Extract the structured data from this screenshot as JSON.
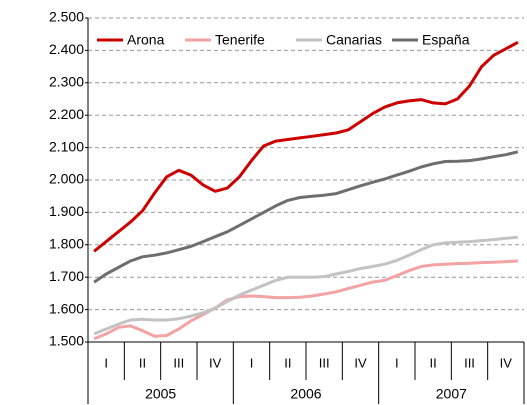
{
  "chart_data": {
    "type": "line",
    "quarters": [
      "I",
      "II",
      "III",
      "IV",
      "I",
      "II",
      "III",
      "IV",
      "I",
      "II",
      "III",
      "IV"
    ],
    "years": [
      "2005",
      "2006",
      "2007"
    ],
    "series": [
      {
        "name": "Arona",
        "color": "#cc0000",
        "values": [
          1780,
          1810,
          1840,
          1870,
          1905,
          1960,
          2010,
          2030,
          2015,
          1985,
          1965,
          1975,
          2010,
          2060,
          2105,
          2120,
          2125,
          2130,
          2135,
          2140,
          2145,
          2155,
          2180,
          2205,
          2225,
          2238,
          2244,
          2248,
          2238,
          2235,
          2250,
          2290,
          2350,
          2385,
          2405,
          2425
        ]
      },
      {
        "name": "Tenerife",
        "color": "#f4a3a3",
        "values": [
          1510,
          1525,
          1545,
          1550,
          1535,
          1518,
          1520,
          1540,
          1565,
          1585,
          1605,
          1630,
          1640,
          1642,
          1640,
          1637,
          1637,
          1638,
          1642,
          1648,
          1655,
          1665,
          1675,
          1685,
          1690,
          1705,
          1720,
          1733,
          1738,
          1740,
          1742,
          1743,
          1745,
          1746,
          1748,
          1750
        ]
      },
      {
        "name": "Canarias",
        "color": "#c3c3c3",
        "values": [
          1525,
          1540,
          1555,
          1568,
          1570,
          1568,
          1568,
          1572,
          1580,
          1590,
          1605,
          1625,
          1645,
          1660,
          1675,
          1690,
          1700,
          1700,
          1700,
          1702,
          1710,
          1718,
          1727,
          1733,
          1740,
          1752,
          1768,
          1785,
          1800,
          1806,
          1808,
          1810,
          1813,
          1816,
          1820,
          1823
        ]
      },
      {
        "name": "España",
        "color": "#6e6e6e",
        "values": [
          1685,
          1710,
          1730,
          1750,
          1763,
          1768,
          1775,
          1785,
          1795,
          1810,
          1825,
          1840,
          1860,
          1880,
          1900,
          1920,
          1937,
          1946,
          1950,
          1953,
          1958,
          1970,
          1982,
          1993,
          2003,
          2015,
          2027,
          2040,
          2050,
          2057,
          2058,
          2060,
          2065,
          2072,
          2078,
          2087
        ]
      }
    ],
    "ylim": [
      1500,
      2500
    ],
    "yticks": [
      {
        "value": 1500,
        "label": "1.500"
      },
      {
        "value": 1600,
        "label": "1.600"
      },
      {
        "value": 1700,
        "label": "1.700"
      },
      {
        "value": 1800,
        "label": "1.800"
      },
      {
        "value": 1900,
        "label": "1.900"
      },
      {
        "value": 2000,
        "label": "2.000"
      },
      {
        "value": 2100,
        "label": "2.100"
      },
      {
        "value": 2200,
        "label": "2.200"
      },
      {
        "value": 2300,
        "label": "2.300"
      },
      {
        "value": 2400,
        "label": "2.400"
      },
      {
        "value": 2500,
        "label": "2.500"
      }
    ],
    "grid": true,
    "legend": "top"
  }
}
